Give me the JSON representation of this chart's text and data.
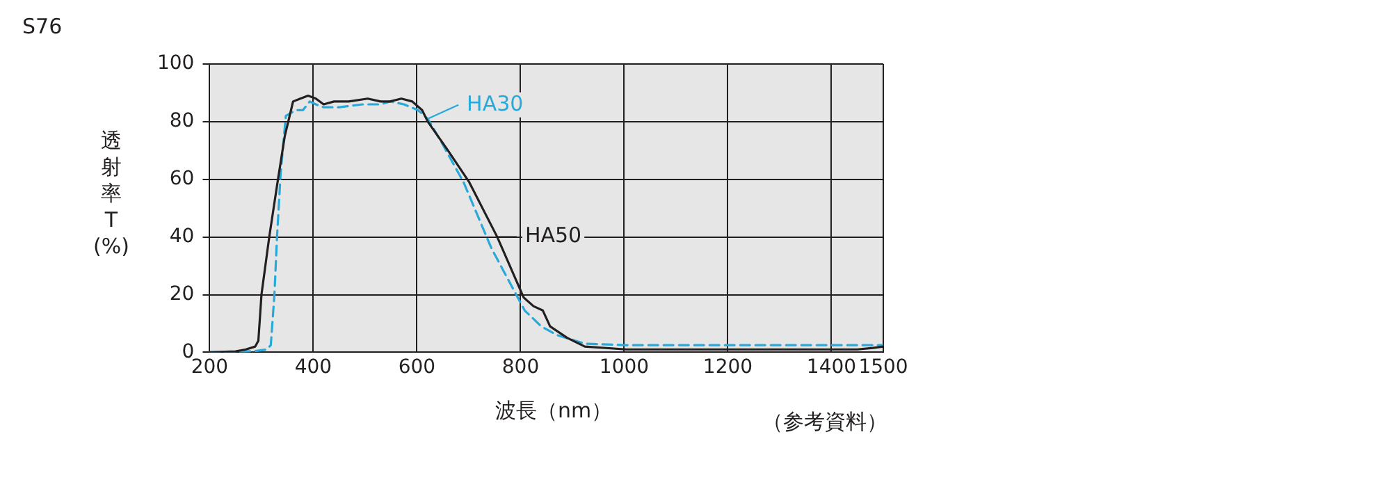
{
  "chart_data": {
    "type": "line",
    "title": "S76",
    "xlabel": "波長（nm）",
    "ylabel": "透射率T(%)",
    "annotations": [
      "（参考資料）"
    ],
    "xlim": [
      200,
      1500
    ],
    "xticks": [
      200,
      400,
      600,
      800,
      1000,
      1200,
      1400,
      1500
    ],
    "ylim": [
      0,
      100
    ],
    "yticks": [
      0,
      20,
      40,
      60,
      80,
      100
    ],
    "grid": true,
    "legend": "top",
    "marker": "none",
    "series": [
      {
        "name": "HA50",
        "color": "#231f20",
        "line_style": "solid",
        "x": [
          200,
          250,
          270,
          288,
          294,
          300,
          315,
          331,
          345,
          361,
          375,
          390,
          405,
          420,
          440,
          468,
          505,
          530,
          548,
          570,
          591,
          610,
          621,
          660,
          701,
          755,
          806,
          825,
          843,
          857,
          890,
          924,
          1004,
          1100,
          1200,
          1300,
          1400,
          1450,
          1480,
          1500
        ],
        "values": [
          0,
          0.3,
          1,
          2,
          4,
          20,
          40,
          59,
          75,
          87,
          88,
          89,
          88,
          86,
          87,
          87,
          88,
          87,
          87,
          88,
          87,
          84,
          80,
          70,
          59,
          40,
          19,
          16,
          14.5,
          9,
          5,
          2,
          1,
          1,
          1,
          1,
          1,
          1,
          1.5,
          2
        ]
      },
      {
        "name": "HA30",
        "color": "#29a9d9",
        "line_style": "dashed",
        "x": [
          200,
          250,
          290,
          310,
          318,
          325,
          330,
          337,
          347,
          366,
          380,
          393,
          405,
          420,
          450,
          495,
          530,
          548,
          575,
          602,
          621,
          650,
          690,
          744,
          808,
          840,
          870,
          924,
          1004,
          1100,
          1200,
          1300,
          1400,
          1500
        ],
        "values": [
          0,
          0,
          0.5,
          1,
          2.5,
          20,
          40,
          62,
          82,
          84,
          84,
          87,
          86,
          85,
          85,
          86,
          86,
          87,
          86,
          84,
          81,
          72,
          59,
          36,
          14.5,
          9,
          6,
          3,
          2.5,
          2.5,
          2.5,
          2.5,
          2.5,
          2.5
        ]
      }
    ]
  }
}
